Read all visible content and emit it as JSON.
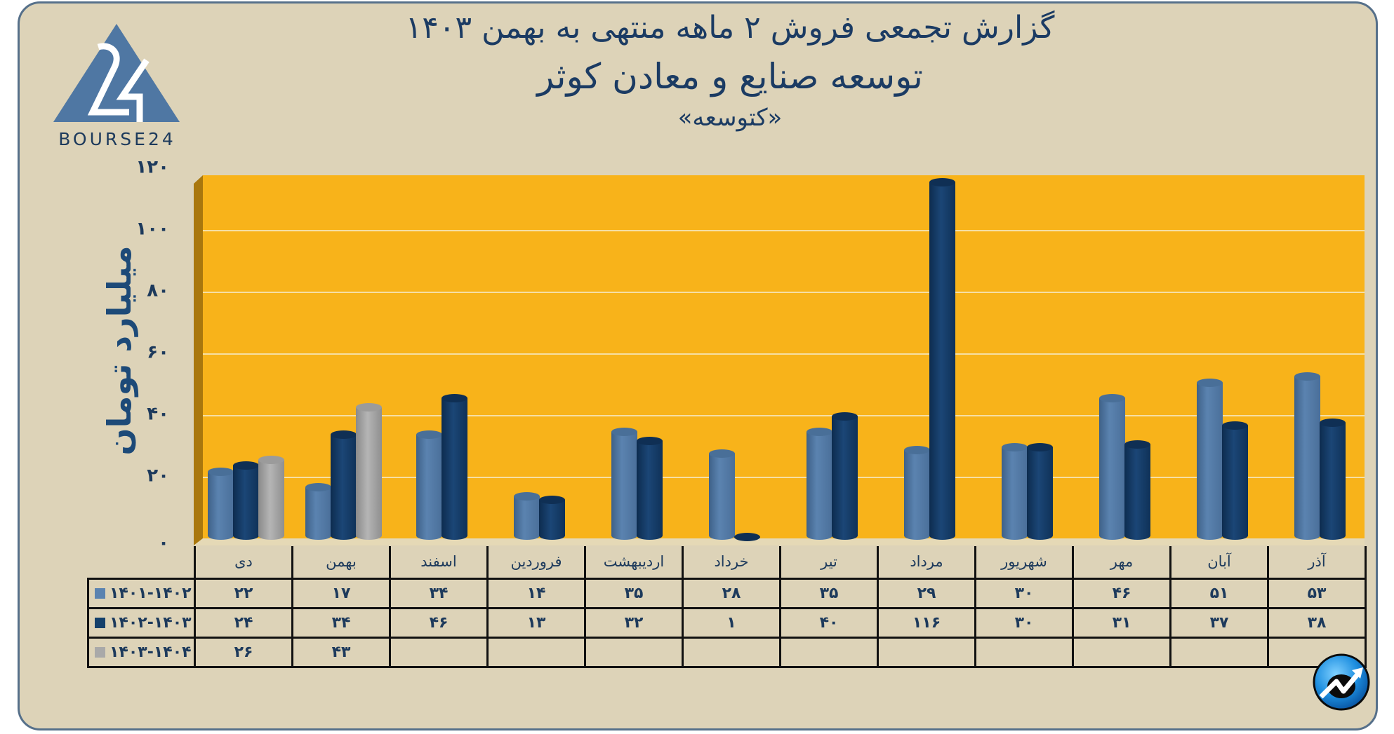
{
  "header": {
    "title_line1": "گزارش تجمعی فروش ۲ ماهه منتهی به بهمن ۱۴۰۳",
    "title_line2": "توسعه صنایع و معادن کوثر",
    "title_line3": "«کتوسعه»"
  },
  "logo": {
    "text": "BOURSE24",
    "mark": "24"
  },
  "colors": {
    "background": "#ddd3b8",
    "frame_border": "#56708a",
    "plot_background": "#f8b31a",
    "series_1401_1402": "#5b83b0",
    "series_1402_1403": "#14406b",
    "series_1403_1404": "#a9a9a9",
    "text": "#1d3a5c"
  },
  "yaxis": {
    "label": "میلیارد تومان",
    "ticks": [
      "۰",
      "۲۰",
      "۴۰",
      "۶۰",
      "۸۰",
      "۱۰۰",
      "۱۲۰"
    ]
  },
  "table": {
    "months": [
      "دی",
      "بهمن",
      "اسفند",
      "فروردین",
      "اردیبهشت",
      "خرداد",
      "تیر",
      "مرداد",
      "شهریور",
      "مهر",
      "آبان",
      "آذر"
    ],
    "rows": [
      {
        "label": "۱۴۰۱-۱۴۰۲",
        "values": [
          "۲۲",
          "۱۷",
          "۳۴",
          "۱۴",
          "۳۵",
          "۲۸",
          "۳۵",
          "۲۹",
          "۳۰",
          "۴۶",
          "۵۱",
          "۵۳"
        ]
      },
      {
        "label": "۱۴۰۲-۱۴۰۳",
        "values": [
          "۲۴",
          "۳۴",
          "۴۶",
          "۱۳",
          "۳۲",
          "۱",
          "۴۰",
          "۱۱۶",
          "۳۰",
          "۳۱",
          "۳۷",
          "۳۸"
        ]
      },
      {
        "label": "۱۴۰۳-۱۴۰۴",
        "values": [
          "۲۶",
          "۴۳",
          "",
          "",
          "",
          "",
          "",
          "",
          "",
          "",
          "",
          ""
        ]
      }
    ]
  },
  "chart_data": {
    "type": "bar",
    "title": "گزارش تجمعی فروش ۲ ماهه منتهی به بهمن ۱۴۰۳ — توسعه صنایع و معادن کوثر «کتوسعه»",
    "xlabel": "",
    "ylabel": "میلیارد تومان",
    "ylim": [
      0,
      120
    ],
    "yticks": [
      0,
      20,
      40,
      60,
      80,
      100,
      120
    ],
    "grid": true,
    "legend_position": "table-left",
    "categories": [
      "دی",
      "بهمن",
      "اسفند",
      "فروردین",
      "اردیبهشت",
      "خرداد",
      "تیر",
      "مرداد",
      "شهریور",
      "مهر",
      "آبان",
      "آذر"
    ],
    "series": [
      {
        "name": "۱۴۰۱-۱۴۰۲",
        "color": "#5b83b0",
        "values": [
          22,
          17,
          34,
          14,
          35,
          28,
          35,
          29,
          30,
          46,
          51,
          53
        ]
      },
      {
        "name": "۱۴۰۲-۱۴۰۳",
        "color": "#14406b",
        "values": [
          24,
          34,
          46,
          13,
          32,
          1,
          40,
          116,
          30,
          31,
          37,
          38
        ]
      },
      {
        "name": "۱۴۰۳-۱۴۰۴",
        "color": "#a9a9a9",
        "values": [
          26,
          43,
          null,
          null,
          null,
          null,
          null,
          null,
          null,
          null,
          null,
          null
        ]
      }
    ]
  }
}
